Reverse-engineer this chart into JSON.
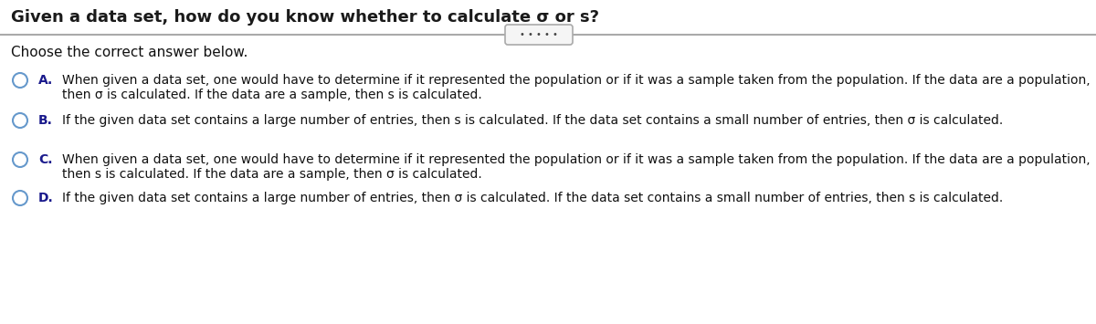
{
  "title": "Given a data set, how do you know whether to calculate σ or s?",
  "subtitle": "Choose the correct answer below.",
  "separator_dots": "• • • • •",
  "background_color": "#ffffff",
  "title_fontsize": 13,
  "subtitle_fontsize": 11,
  "answer_fontsize": 10,
  "options": [
    {
      "letter": "A.",
      "circle_color": "#6699cc",
      "text_line1": "When given a data set, one would have to determine if it represented the population or if it was a sample taken from the population. If the data are a population,",
      "text_line2": "then σ is calculated. If the data are a sample, then s is calculated."
    },
    {
      "letter": "B.",
      "circle_color": "#6699cc",
      "text_line1": "If the given data set contains a large number of entries, then s is calculated. If the data set contains a small number of entries, then σ is calculated.",
      "text_line2": null
    },
    {
      "letter": "C.",
      "circle_color": "#6699cc",
      "text_line1": "When given a data set, one would have to determine if it represented the population or if it was a sample taken from the population. If the data are a population,",
      "text_line2": "then s is calculated. If the data are a sample, then σ is calculated."
    },
    {
      "letter": "D.",
      "circle_color": "#6699cc",
      "text_line1": "If the given data set contains a large number of entries, then σ is calculated. If the data set contains a small number of entries, then s is calculated.",
      "text_line2": null
    }
  ],
  "separator_line_color": "#aaaaaa",
  "separator_box_edge": "#aaaaaa",
  "separator_box_fill": "#f5f5f5"
}
